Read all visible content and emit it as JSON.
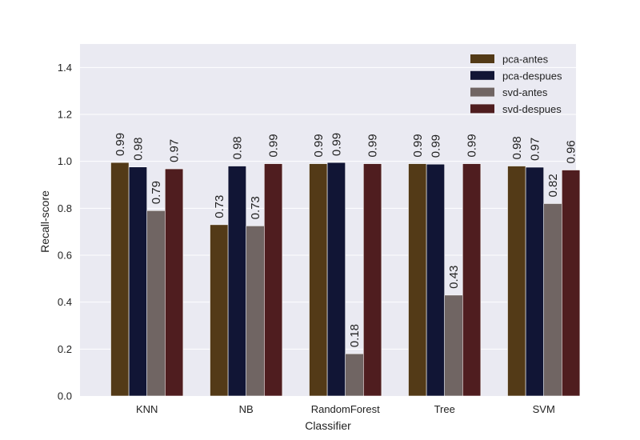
{
  "chart_data": {
    "type": "bar",
    "xlabel": "Classifier",
    "ylabel": "Recall-score",
    "ylim": [
      0,
      1.5
    ],
    "yticks": [
      "0.0",
      "0.2",
      "0.4",
      "0.6",
      "0.8",
      "1.0",
      "1.2",
      "1.4"
    ],
    "categories": [
      "KNN",
      "NB",
      "RandomForest",
      "Tree",
      "SVM"
    ],
    "series": [
      {
        "name": "pca-antes",
        "color": "#533a17",
        "values": [
          0.995,
          0.73,
          0.99,
          0.99,
          0.98
        ],
        "labels": [
          "0.99",
          "0.73",
          "0.99",
          "0.99",
          "0.98"
        ]
      },
      {
        "name": "pca-despues",
        "color": "#111535",
        "values": [
          0.976,
          0.98,
          0.995,
          0.988,
          0.975
        ],
        "labels": [
          "0.98",
          "0.98",
          "0.99",
          "0.99",
          "0.97"
        ]
      },
      {
        "name": "svd-antes",
        "color": "#706563",
        "values": [
          0.79,
          0.725,
          0.18,
          0.43,
          0.82
        ],
        "labels": [
          "0.79",
          "0.73",
          "0.18",
          "0.43",
          "0.82"
        ]
      },
      {
        "name": "svd-despues",
        "color": "#4f1d1f",
        "values": [
          0.968,
          0.99,
          0.99,
          0.99,
          0.963
        ],
        "labels": [
          "0.97",
          "0.99",
          "0.99",
          "0.99",
          "0.96"
        ]
      }
    ],
    "grid": true,
    "legend_position": "top-right",
    "background": "#eaeaf2"
  }
}
